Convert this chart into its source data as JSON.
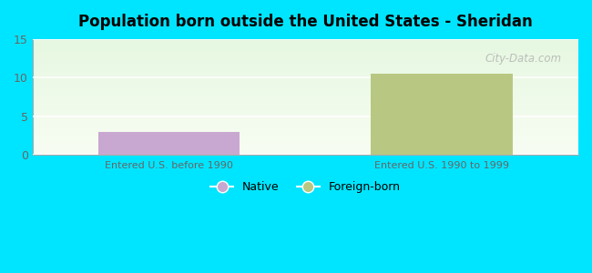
{
  "title": "Population born outside the United States - Sheridan",
  "groups": [
    "Entered U.S. before 1990",
    "Entered U.S. 1990 to 1999"
  ],
  "native_value": 3.0,
  "foreign_value": 10.5,
  "native_color": "#c8a8d0",
  "foreign_color": "#b8c882",
  "ylim": [
    0,
    15
  ],
  "yticks": [
    0,
    5,
    10,
    15
  ],
  "bg_color": "#00e5ff",
  "watermark": "City-Data.com",
  "legend_native": "Native",
  "legend_foreign": "Foreign-born",
  "bar_width": 0.52
}
